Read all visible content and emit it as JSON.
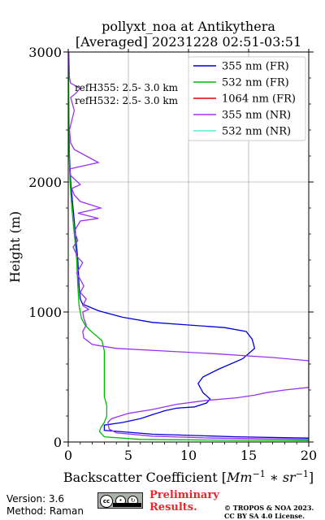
{
  "chart_data": {
    "type": "line",
    "title_line1": "pollyxt_noa at Antikythera",
    "title_line2": "[Averaged] 20231228 02:51-03:51",
    "xlabel": "Backscatter Coefficient [$Mm^{-1}*sr^{-1}$]",
    "ylabel": "Height (m)",
    "xlim": [
      0,
      20
    ],
    "ylim": [
      0,
      3000
    ],
    "xticks": [
      0,
      5,
      10,
      15,
      20
    ],
    "yticks": [
      0,
      1000,
      2000,
      3000
    ],
    "grid": true,
    "legend_position": "top-right",
    "annotations": [
      "refH355:  2.5- 3.0 km",
      "refH532:  2.5- 3.0 km"
    ],
    "series": [
      {
        "name": "355 nm (FR)",
        "color": "#0000dd",
        "points": [
          [
            20,
            30
          ],
          [
            14,
            40
          ],
          [
            7,
            60
          ],
          [
            3,
            90
          ],
          [
            3,
            130
          ],
          [
            4.5,
            150
          ],
          [
            6,
            180
          ],
          [
            7,
            210
          ],
          [
            8,
            240
          ],
          [
            9,
            260
          ],
          [
            10.5,
            270
          ],
          [
            11.5,
            300
          ],
          [
            11.8,
            330
          ],
          [
            11.2,
            380
          ],
          [
            10.8,
            450
          ],
          [
            11.2,
            500
          ],
          [
            12.5,
            560
          ],
          [
            14.5,
            640
          ],
          [
            15.5,
            720
          ],
          [
            15.3,
            790
          ],
          [
            14.8,
            850
          ],
          [
            13,
            880
          ],
          [
            10,
            900
          ],
          [
            7,
            920
          ],
          [
            4.5,
            960
          ],
          [
            2.5,
            1010
          ],
          [
            1.2,
            1060
          ],
          [
            1.0,
            1100
          ],
          [
            0.9,
            1200
          ],
          [
            0.8,
            1400
          ],
          [
            0.6,
            1600
          ],
          [
            0.4,
            1800
          ],
          [
            0.2,
            2000
          ],
          [
            0.1,
            2200
          ],
          [
            0.05,
            2500
          ],
          [
            0.02,
            3000
          ]
        ]
      },
      {
        "name": "532 nm (FR)",
        "color": "#00bb00",
        "points": [
          [
            20,
            10
          ],
          [
            12,
            15
          ],
          [
            6,
            20
          ],
          [
            3,
            40
          ],
          [
            2.6,
            80
          ],
          [
            2.7,
            110
          ],
          [
            3.0,
            150
          ],
          [
            3.2,
            200
          ],
          [
            3.2,
            280
          ],
          [
            3.0,
            350
          ],
          [
            3.0,
            450
          ],
          [
            3.0,
            600
          ],
          [
            3.0,
            700
          ],
          [
            2.8,
            780
          ],
          [
            2.3,
            820
          ],
          [
            1.8,
            860
          ],
          [
            1.4,
            900
          ],
          [
            1.1,
            950
          ],
          [
            0.9,
            1050
          ],
          [
            0.8,
            1200
          ],
          [
            0.7,
            1400
          ],
          [
            0.5,
            1600
          ],
          [
            0.3,
            1800
          ],
          [
            0.15,
            2000
          ],
          [
            0.08,
            2200
          ],
          [
            0.03,
            2500
          ],
          [
            0.02,
            3000
          ]
        ]
      },
      {
        "name": "1064 nm (FR)",
        "color": "#dd0000",
        "points": []
      },
      {
        "name": "355 nm (NR)",
        "color": "#9933ee",
        "points": [
          [
            20,
            20
          ],
          [
            12,
            30
          ],
          [
            7,
            45
          ],
          [
            4,
            70
          ],
          [
            3.4,
            100
          ],
          [
            3.3,
            150
          ],
          [
            3.6,
            180
          ],
          [
            5,
            220
          ],
          [
            7,
            250
          ],
          [
            9,
            290
          ],
          [
            11.5,
            320
          ],
          [
            14,
            340
          ],
          [
            15.5,
            360
          ],
          [
            16.5,
            380
          ],
          [
            18,
            400
          ],
          [
            20,
            420
          ],
          [
            20,
            625
          ],
          [
            17,
            650
          ],
          [
            12,
            680
          ],
          [
            8,
            700
          ],
          [
            4,
            720
          ],
          [
            2,
            750
          ],
          [
            1.3,
            800
          ],
          [
            1.2,
            850
          ],
          [
            1.5,
            900
          ],
          [
            1.3,
            950
          ],
          [
            1.2,
            1000
          ],
          [
            1.7,
            1020
          ],
          [
            1.2,
            1050
          ],
          [
            1.5,
            1100
          ],
          [
            1.0,
            1150
          ],
          [
            1.3,
            1200
          ],
          [
            0.7,
            1300
          ],
          [
            1.2,
            1380
          ],
          [
            0.8,
            1420
          ],
          [
            0.4,
            1500
          ],
          [
            0.8,
            1550
          ],
          [
            0.5,
            1620
          ],
          [
            1.0,
            1700
          ],
          [
            2.5,
            1720
          ],
          [
            0.8,
            1760
          ],
          [
            2.7,
            1800
          ],
          [
            1.0,
            1850
          ],
          [
            0.5,
            1900
          ],
          [
            0.3,
            1950
          ],
          [
            1.0,
            1980
          ],
          [
            0.2,
            2050
          ],
          [
            0.1,
            2100
          ],
          [
            2.5,
            2150
          ],
          [
            1.5,
            2200
          ],
          [
            0.5,
            2250
          ],
          [
            0.2,
            2300
          ],
          [
            0.1,
            2400
          ],
          [
            0.5,
            2550
          ],
          [
            0.2,
            2650
          ],
          [
            0.6,
            2680
          ],
          [
            1.0,
            2720
          ],
          [
            0.2,
            2760
          ],
          [
            0.1,
            2800
          ],
          [
            0.05,
            3000
          ]
        ]
      },
      {
        "name": "532 nm (NR)",
        "color": "#55eecc",
        "points": []
      }
    ]
  },
  "footer": {
    "version": "Version: 3.6",
    "method": "Method: Raman",
    "preliminary": "Preliminary Results.",
    "copyright": "© TROPOS & NOA 2023. CC BY SA 4.0 License.",
    "badge": "cc"
  }
}
